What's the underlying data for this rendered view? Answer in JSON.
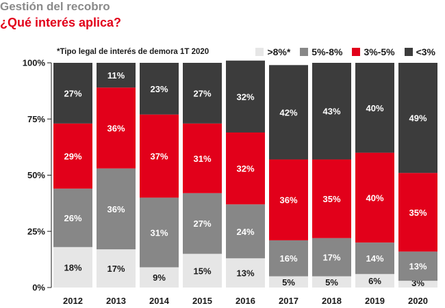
{
  "header": {
    "title": "Gestión del recobro",
    "subtitle": "¿Qué interés aplica?",
    "note": "*Tipo legal de interés de demora 1T 2020"
  },
  "chart_data": {
    "type": "bar",
    "stacked": true,
    "categories": [
      "2012",
      "2013",
      "2014",
      "2015",
      "2016",
      "2017",
      "2018",
      "2019",
      "2020"
    ],
    "ylim": [
      0,
      100
    ],
    "ytick_labels": [
      "0%",
      "25%",
      "50%",
      "75%",
      "100%"
    ],
    "yticks": [
      0,
      25,
      50,
      75,
      100
    ],
    "legend_position": "top-right",
    "series": [
      {
        "name": ">8%*",
        "color": "#e6e6e6",
        "label_color": "#1a1a1a",
        "values": [
          18,
          17,
          9,
          15,
          13,
          5,
          5,
          6,
          3
        ],
        "labels": [
          "18%",
          "17%",
          "9%",
          "15%",
          "13%",
          "5%",
          "5%",
          "6%",
          "3%"
        ]
      },
      {
        "name": "5%-8%",
        "color": "#878787",
        "label_color": "#ffffff",
        "values": [
          26,
          36,
          31,
          27,
          24,
          16,
          17,
          14,
          13
        ],
        "labels": [
          "26%",
          "36%",
          "31%",
          "27%",
          "24%",
          "16%",
          "17%",
          "14%",
          "13%"
        ]
      },
      {
        "name": "3%-5%",
        "color": "#e2001a",
        "label_color": "#ffffff",
        "values": [
          29,
          36,
          37,
          31,
          32,
          36,
          35,
          40,
          35
        ],
        "labels": [
          "29%",
          "36%",
          "37%",
          "31%",
          "32%",
          "36%",
          "35%",
          "40%",
          "35%"
        ]
      },
      {
        "name": "<3%",
        "color": "#3c3c3c",
        "label_color": "#ffffff",
        "values": [
          27,
          11,
          23,
          27,
          32,
          42,
          43,
          40,
          49
        ],
        "labels": [
          "27%",
          "11%",
          "23%",
          "27%",
          "32%",
          "42%",
          "43%",
          "40%",
          "49%"
        ]
      }
    ]
  }
}
